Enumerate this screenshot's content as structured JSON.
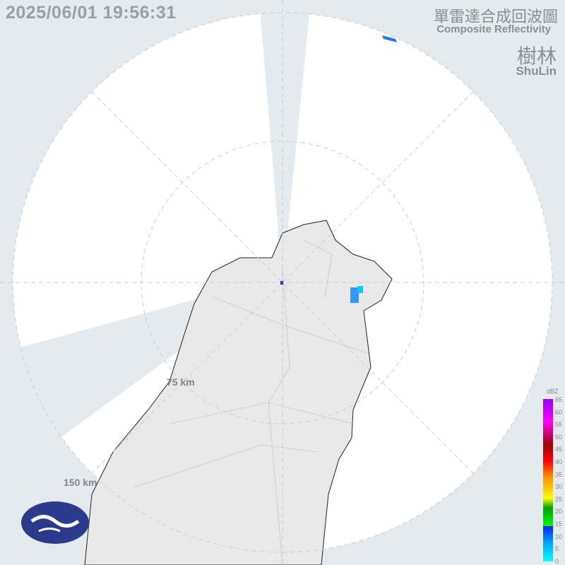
{
  "timestamp": "2025/06/01 19:56:31",
  "title_zh": "單雷達合成回波圖",
  "title_en": "Composite Reflectivity",
  "station_zh": "樹林",
  "station_en": "ShuLin",
  "range_rings": [
    "75 km",
    "150 km"
  ],
  "legend": {
    "unit": "dBZ",
    "ticks": [
      "65",
      "60",
      "55",
      "50",
      "45",
      "40",
      "35",
      "30",
      "25",
      "20",
      "15",
      "10",
      "5",
      "0"
    ]
  },
  "logo": "cwa-logo-icon",
  "colors": {
    "background": "#e5eaef",
    "coverage": "#ffffff",
    "land": "#e8e8e8",
    "echo": "#3399ff"
  }
}
